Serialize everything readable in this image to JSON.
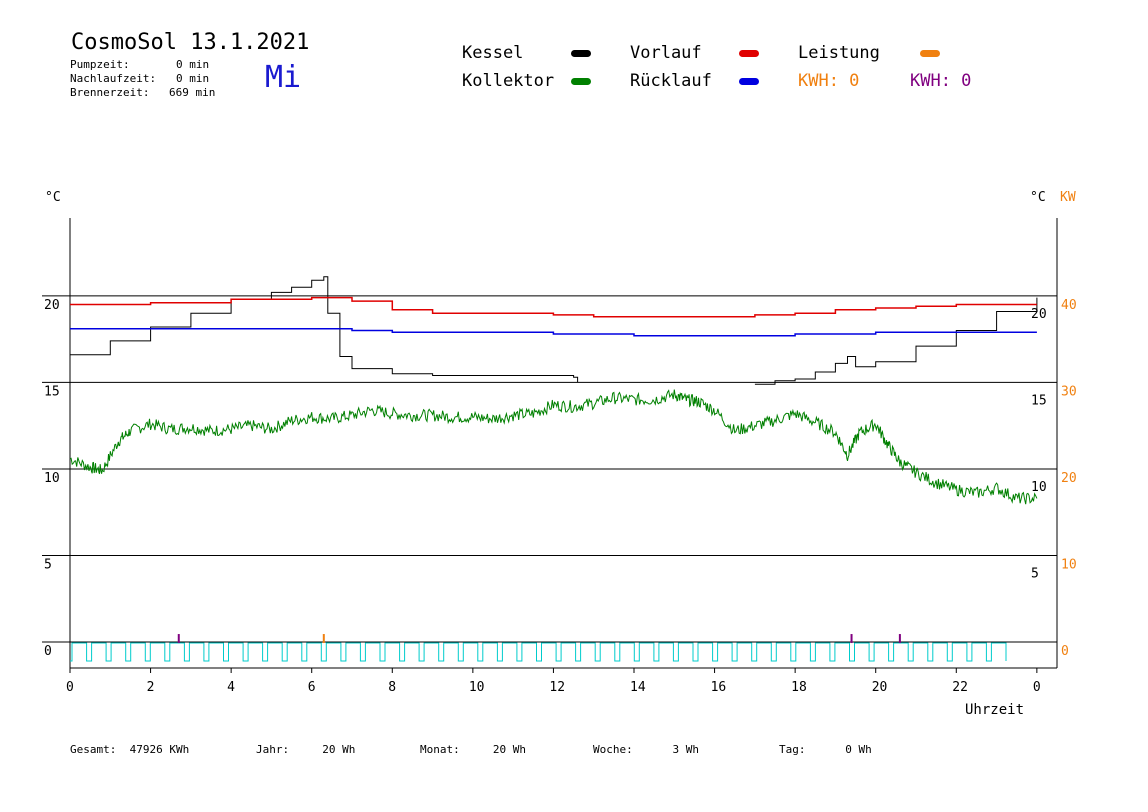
{
  "header": {
    "title": "CosmoSol 13.1.2021",
    "weekday": "Mi",
    "info": [
      {
        "label": "Pumpzeit:",
        "value": "0 min"
      },
      {
        "label": "Nachlaufzeit:",
        "value": "0 min"
      },
      {
        "label": "Brennerzeit:",
        "value": "669 min"
      }
    ]
  },
  "legend": {
    "kessel": {
      "label": "Kessel",
      "color": "#000000"
    },
    "vorlauf": {
      "label": "Vorlauf",
      "color": "#e00000"
    },
    "leistung": {
      "label": "Leistung",
      "color": "#f08010"
    },
    "kollektor": {
      "label": "Kollektor",
      "color": "#008000"
    },
    "ruecklauf": {
      "label": "Rücklauf",
      "color": "#0000e0"
    },
    "kwh_orange": "KWH: 0",
    "kwh_purple": "KWH: 0"
  },
  "footer": {
    "gesamt": "Gesamt:  47926 KWh",
    "jahr": "Jahr:     20 Wh",
    "monat": "Monat:     20 Wh",
    "woche": "Woche:      3 Wh",
    "tag": "Tag:      0 Wh"
  },
  "chart_data": {
    "type": "line",
    "x_label": "Uhrzeit",
    "y_left_unit": "°C",
    "y_right_unit_temp": "°C",
    "y_right_unit_kw": "KW",
    "x_ticks": [
      "0",
      "2",
      "4",
      "6",
      "8",
      "10",
      "12",
      "14",
      "16",
      "18",
      "20",
      "22",
      "0"
    ],
    "y_left_ticks": [
      0,
      5,
      10,
      15,
      20
    ],
    "y_left_range": [
      -1.5,
      24.5
    ],
    "y_right_temp_ticks": [
      5,
      10,
      15,
      20
    ],
    "y_right_kw_ticks": [
      0,
      10,
      20,
      30,
      40
    ],
    "x_range": [
      0,
      24.5
    ],
    "grid_y": [
      0,
      5,
      10,
      15,
      20
    ],
    "colors": {
      "kessel": "#000000",
      "vorlauf": "#e00000",
      "ruecklauf": "#0000e0",
      "kollektor": "#008000",
      "pump": "#00cccc"
    },
    "series": [
      {
        "name": "Kessel",
        "key": "kessel",
        "x": [
          0,
          1,
          2,
          3,
          4,
          5,
          5.5,
          6,
          6.3,
          6.4,
          6.7,
          7.0,
          8.0,
          9.0,
          10.0,
          11.0,
          12.0,
          12.5,
          12.6
        ],
        "y": [
          16.6,
          17.4,
          18.2,
          19.0,
          19.8,
          20.2,
          20.5,
          20.9,
          21.1,
          19.0,
          16.5,
          15.8,
          15.5,
          15.4,
          15.4,
          15.4,
          15.4,
          15.3,
          15.0
        ]
      },
      {
        "name": "Kessel (Abend)",
        "key": "kessel",
        "x": [
          17.0,
          17.5,
          18.0,
          18.5,
          19.0,
          19.3,
          19.5,
          20.0,
          21.0,
          22.0,
          23.0,
          24.0
        ],
        "y": [
          14.9,
          15.1,
          15.2,
          15.6,
          16.1,
          16.5,
          15.9,
          16.2,
          17.1,
          18.0,
          19.1,
          19.9
        ]
      },
      {
        "name": "Vorlauf",
        "key": "vorlauf",
        "x": [
          0,
          2,
          4,
          6,
          7,
          8,
          9,
          10,
          12,
          13,
          14,
          15,
          16,
          17,
          18,
          19,
          20,
          21,
          22,
          23,
          24
        ],
        "y": [
          19.5,
          19.6,
          19.8,
          19.9,
          19.7,
          19.2,
          19.0,
          19.0,
          18.9,
          18.8,
          18.8,
          18.8,
          18.8,
          18.9,
          19.0,
          19.2,
          19.3,
          19.4,
          19.5,
          19.5,
          19.5
        ]
      },
      {
        "name": "Rücklauf",
        "key": "ruecklauf",
        "x": [
          0,
          2,
          4,
          6,
          7,
          8,
          10,
          12,
          13,
          14,
          15,
          16,
          17,
          18,
          19,
          20,
          22,
          24
        ],
        "y": [
          18.1,
          18.1,
          18.1,
          18.1,
          18.0,
          17.9,
          17.9,
          17.8,
          17.8,
          17.7,
          17.7,
          17.7,
          17.7,
          17.8,
          17.8,
          17.9,
          17.9,
          17.9
        ]
      },
      {
        "name": "Kollektor",
        "key": "kollektor",
        "x": [
          0,
          0.5,
          0.8,
          1.2,
          1.5,
          2,
          2.5,
          3,
          3.5,
          4,
          4.5,
          5,
          5.5,
          6,
          6.5,
          7,
          7.5,
          8,
          8.5,
          9,
          9.5,
          10,
          10.5,
          11,
          11.5,
          12,
          12.5,
          13,
          13.5,
          14,
          14.5,
          15,
          15.3,
          15.6,
          16,
          16.5,
          17,
          17.5,
          18,
          18.5,
          19,
          19.3,
          19.6,
          20,
          20.3,
          20.6,
          21,
          21.5,
          22,
          22.5,
          23,
          23.5,
          24
        ],
        "y": [
          10.6,
          10.1,
          9.9,
          11.6,
          12.2,
          12.6,
          12.3,
          12.4,
          12.2,
          12.3,
          12.5,
          12.3,
          12.8,
          13.0,
          12.9,
          13.1,
          13.4,
          13.2,
          13.1,
          13.1,
          13.0,
          13.0,
          12.9,
          13.1,
          13.2,
          13.7,
          13.6,
          13.8,
          14.1,
          14.0,
          14.0,
          14.3,
          14.0,
          13.9,
          13.4,
          12.2,
          12.5,
          12.8,
          13.2,
          12.7,
          12.1,
          10.8,
          12.1,
          12.6,
          11.4,
          10.4,
          9.8,
          9.2,
          8.8,
          8.6,
          8.9,
          8.3,
          8.3
        ]
      }
    ],
    "markers": [
      {
        "x": 2.7,
        "color": "#800080"
      },
      {
        "x": 6.3,
        "color": "#f08010"
      },
      {
        "x": 19.4,
        "color": "#800080"
      },
      {
        "x": 20.6,
        "color": "#800080"
      }
    ],
    "pump_pulses": 48
  }
}
